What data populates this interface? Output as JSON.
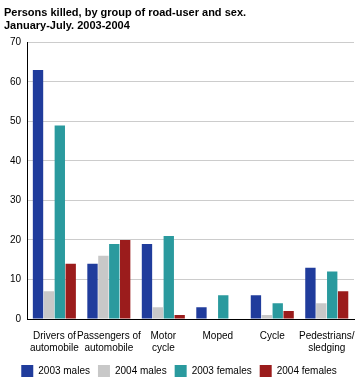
{
  "chart_data": {
    "type": "bar",
    "title": [
      "Persons killed, by group of road-user and sex.",
      "January-July. 2003-2004"
    ],
    "categories": [
      [
        "Drivers of",
        "automobile"
      ],
      [
        "Passengers of",
        "automobile"
      ],
      [
        "Motor",
        "cycle"
      ],
      [
        "Moped"
      ],
      [
        "Cycle"
      ],
      [
        "Pedestrians/",
        "sledging"
      ]
    ],
    "series": [
      {
        "name": "2003 males",
        "color": "#203c9c",
        "values": [
          63,
          14,
          19,
          3,
          6,
          13
        ]
      },
      {
        "name": "2004 males",
        "color": "#c8c8c8",
        "values": [
          7,
          16,
          3,
          0,
          1,
          4
        ]
      },
      {
        "name": "2003 females",
        "color": "#2a9a9e",
        "values": [
          49,
          19,
          21,
          6,
          4,
          12
        ]
      },
      {
        "name": "2004 females",
        "color": "#9b1c1c",
        "values": [
          14,
          20,
          1,
          0,
          2,
          7
        ]
      }
    ],
    "ylim": [
      0,
      70
    ],
    "yticks": [
      0,
      10,
      20,
      30,
      40,
      50,
      60,
      70
    ],
    "grid": true,
    "legend": "bottom"
  }
}
